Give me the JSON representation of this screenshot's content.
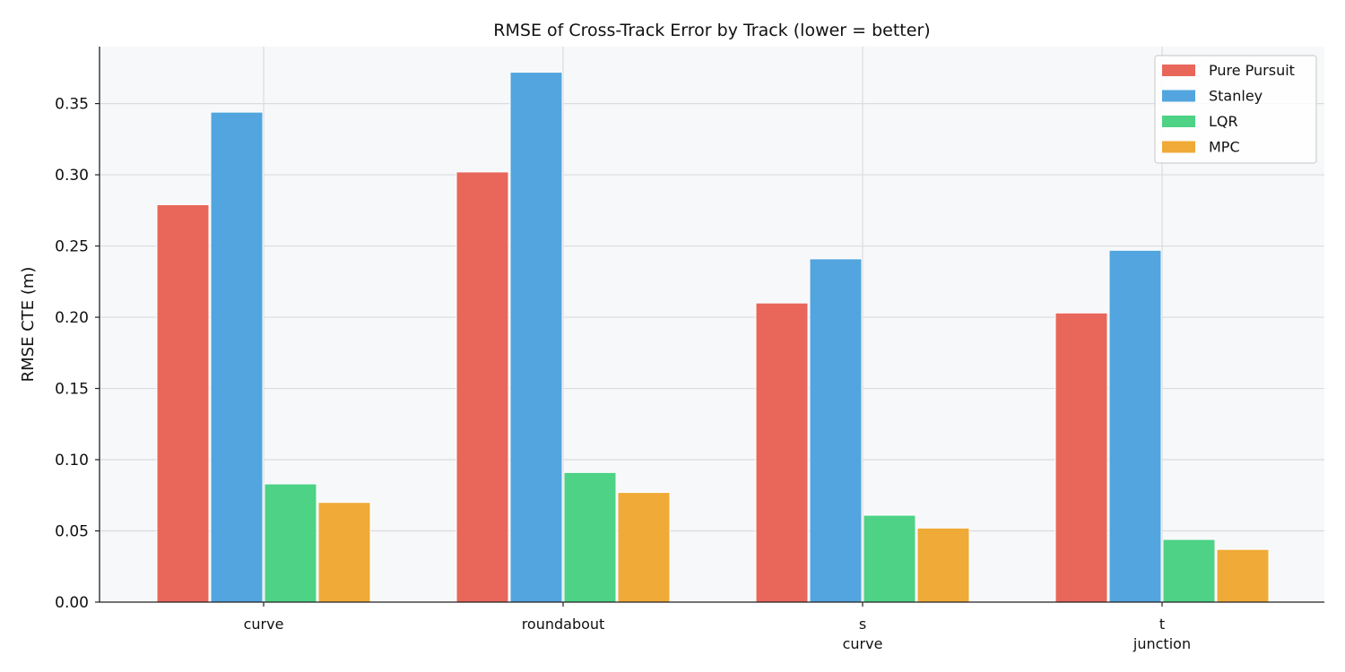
{
  "chart_data": {
    "type": "bar",
    "title": "RMSE of Cross-Track Error by Track  (lower = better)",
    "xlabel": "",
    "ylabel": "RMSE CTE (m)",
    "categories": [
      [
        "curve"
      ],
      [
        "roundabout"
      ],
      [
        "s",
        "curve"
      ],
      [
        "t",
        "junction"
      ]
    ],
    "ylim": [
      0,
      0.39
    ],
    "yticks": [
      "0.00",
      "0.05",
      "0.10",
      "0.15",
      "0.20",
      "0.25",
      "0.30",
      "0.35"
    ],
    "grid": true,
    "legend_position": "top-right",
    "series": [
      {
        "name": "Pure Pursuit",
        "color": "#E8675A",
        "values": [
          0.279,
          0.302,
          0.21,
          0.203
        ]
      },
      {
        "name": "Stanley",
        "color": "#52A5DE",
        "values": [
          0.344,
          0.372,
          0.241,
          0.247
        ]
      },
      {
        "name": "LQR",
        "color": "#4DD286",
        "values": [
          0.083,
          0.091,
          0.061,
          0.044
        ]
      },
      {
        "name": "MPC",
        "color": "#F0AA37",
        "values": [
          0.07,
          0.077,
          0.052,
          0.037
        ]
      }
    ]
  }
}
